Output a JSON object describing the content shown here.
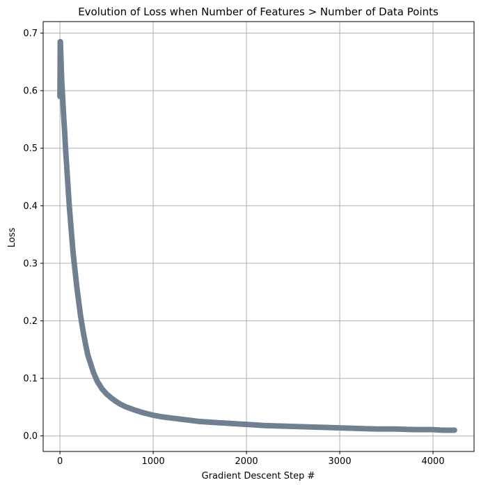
{
  "chart_data": {
    "type": "scatter",
    "title": "Evolution of Loss when Number of Features > Number of Data Points",
    "xlabel": "Gradient Descent Step #",
    "ylabel": "Loss",
    "xlim": [
      -180,
      4440
    ],
    "ylim": [
      -0.027,
      0.72
    ],
    "xticks": [
      0,
      1000,
      2000,
      3000,
      4000
    ],
    "xtick_labels": [
      "0",
      "1000",
      "2000",
      "3000",
      "4000"
    ],
    "yticks": [
      0.0,
      0.1,
      0.2,
      0.3,
      0.4,
      0.5,
      0.6,
      0.7
    ],
    "ytick_labels": [
      "0.0",
      "0.1",
      "0.2",
      "0.3",
      "0.4",
      "0.5",
      "0.6",
      "0.7"
    ],
    "grid": true,
    "marker_color": "#708090",
    "series": [
      {
        "x": [
          0,
          3,
          5,
          8,
          12,
          16,
          20,
          25,
          30,
          35,
          40,
          50,
          60,
          70,
          80,
          90,
          100,
          110,
          120,
          140,
          160,
          180,
          200,
          220,
          250,
          280,
          300,
          330,
          360,
          400,
          450,
          500,
          550,
          600,
          650,
          700,
          800,
          900,
          1000,
          1100,
          1200,
          1300,
          1400,
          1500,
          1600,
          1700,
          1800,
          1900,
          2000,
          2200,
          2400,
          2600,
          2800,
          3000,
          3200,
          3400,
          3600,
          3800,
          4000,
          4100,
          4200,
          4230
        ],
        "y": [
          0.59,
          0.685,
          0.685,
          0.67,
          0.65,
          0.63,
          0.615,
          0.6,
          0.585,
          0.57,
          0.555,
          0.53,
          0.5,
          0.475,
          0.45,
          0.425,
          0.4,
          0.38,
          0.36,
          0.32,
          0.29,
          0.26,
          0.235,
          0.21,
          0.18,
          0.155,
          0.14,
          0.125,
          0.11,
          0.095,
          0.082,
          0.073,
          0.066,
          0.06,
          0.055,
          0.051,
          0.045,
          0.04,
          0.036,
          0.033,
          0.031,
          0.029,
          0.027,
          0.025,
          0.024,
          0.023,
          0.022,
          0.021,
          0.02,
          0.018,
          0.017,
          0.016,
          0.015,
          0.014,
          0.013,
          0.012,
          0.012,
          0.011,
          0.011,
          0.01,
          0.01,
          0.01
        ]
      }
    ]
  }
}
